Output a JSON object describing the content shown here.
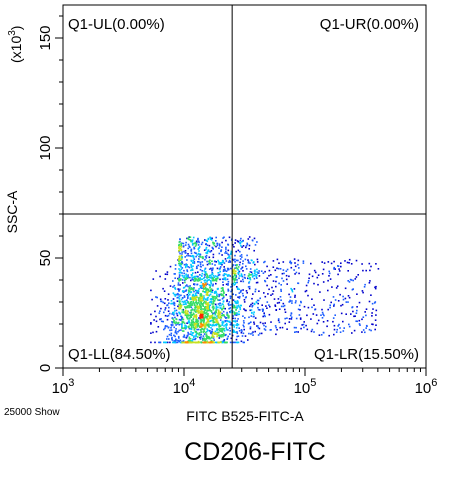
{
  "chart_data": {
    "type": "scatter",
    "subtype": "flow-cytometry-density-dot-plot",
    "title": "CD206-FITC",
    "xlabel": "FITC B525-FITC-A",
    "ylabel": "SSC-A",
    "y_multiplier": "(x10^3)",
    "x_scale": "log",
    "xlim": [
      1000,
      1000000
    ],
    "ylim": [
      0,
      165
    ],
    "x_ticks": [
      {
        "value": 1000,
        "base": "10",
        "exp": "3"
      },
      {
        "value": 10000,
        "base": "10",
        "exp": "4"
      },
      {
        "value": 100000,
        "base": "10",
        "exp": "5"
      },
      {
        "value": 1000000,
        "base": "10",
        "exp": "6"
      }
    ],
    "y_ticks": [
      {
        "value": 0,
        "label": "0"
      },
      {
        "value": 50,
        "label": "50"
      },
      {
        "value": 100,
        "label": "100"
      },
      {
        "value": 150,
        "label": "150"
      }
    ],
    "event_count_label": "25000 Show",
    "gate": {
      "x": 25000,
      "y": 70
    },
    "quadrants": [
      {
        "id": "UL",
        "label": "Q1-UL(0.00%)",
        "percent": 0.0,
        "position": "top-left"
      },
      {
        "id": "UR",
        "label": "Q1-UR(0.00%)",
        "percent": 0.0,
        "position": "top-right"
      },
      {
        "id": "LL",
        "label": "Q1-LL(84.50%)",
        "percent": 84.5,
        "position": "bottom-left"
      },
      {
        "id": "LR",
        "label": "Q1-LR(15.50%)",
        "percent": 15.5,
        "position": "bottom-right"
      }
    ],
    "populations": [
      {
        "name": "main",
        "center_log10_x": 4.15,
        "center_y": 25,
        "spread_log10_x": 0.16,
        "spread_y": 10,
        "share": 0.62
      },
      {
        "name": "positive-tail",
        "log10_x_range": [
          4.4,
          5.6
        ],
        "y_range": [
          15,
          50
        ],
        "share": 0.2
      },
      {
        "name": "upper-band",
        "log10_x_range": [
          3.95,
          4.6
        ],
        "y_range": [
          40,
          60
        ],
        "share": 0.18
      }
    ],
    "density_colors": [
      "#0000cc",
      "#1a5cff",
      "#00c8ff",
      "#33dd66",
      "#c8e020",
      "#ff8c00",
      "#ff2200"
    ],
    "grid": false,
    "legend": "none"
  }
}
